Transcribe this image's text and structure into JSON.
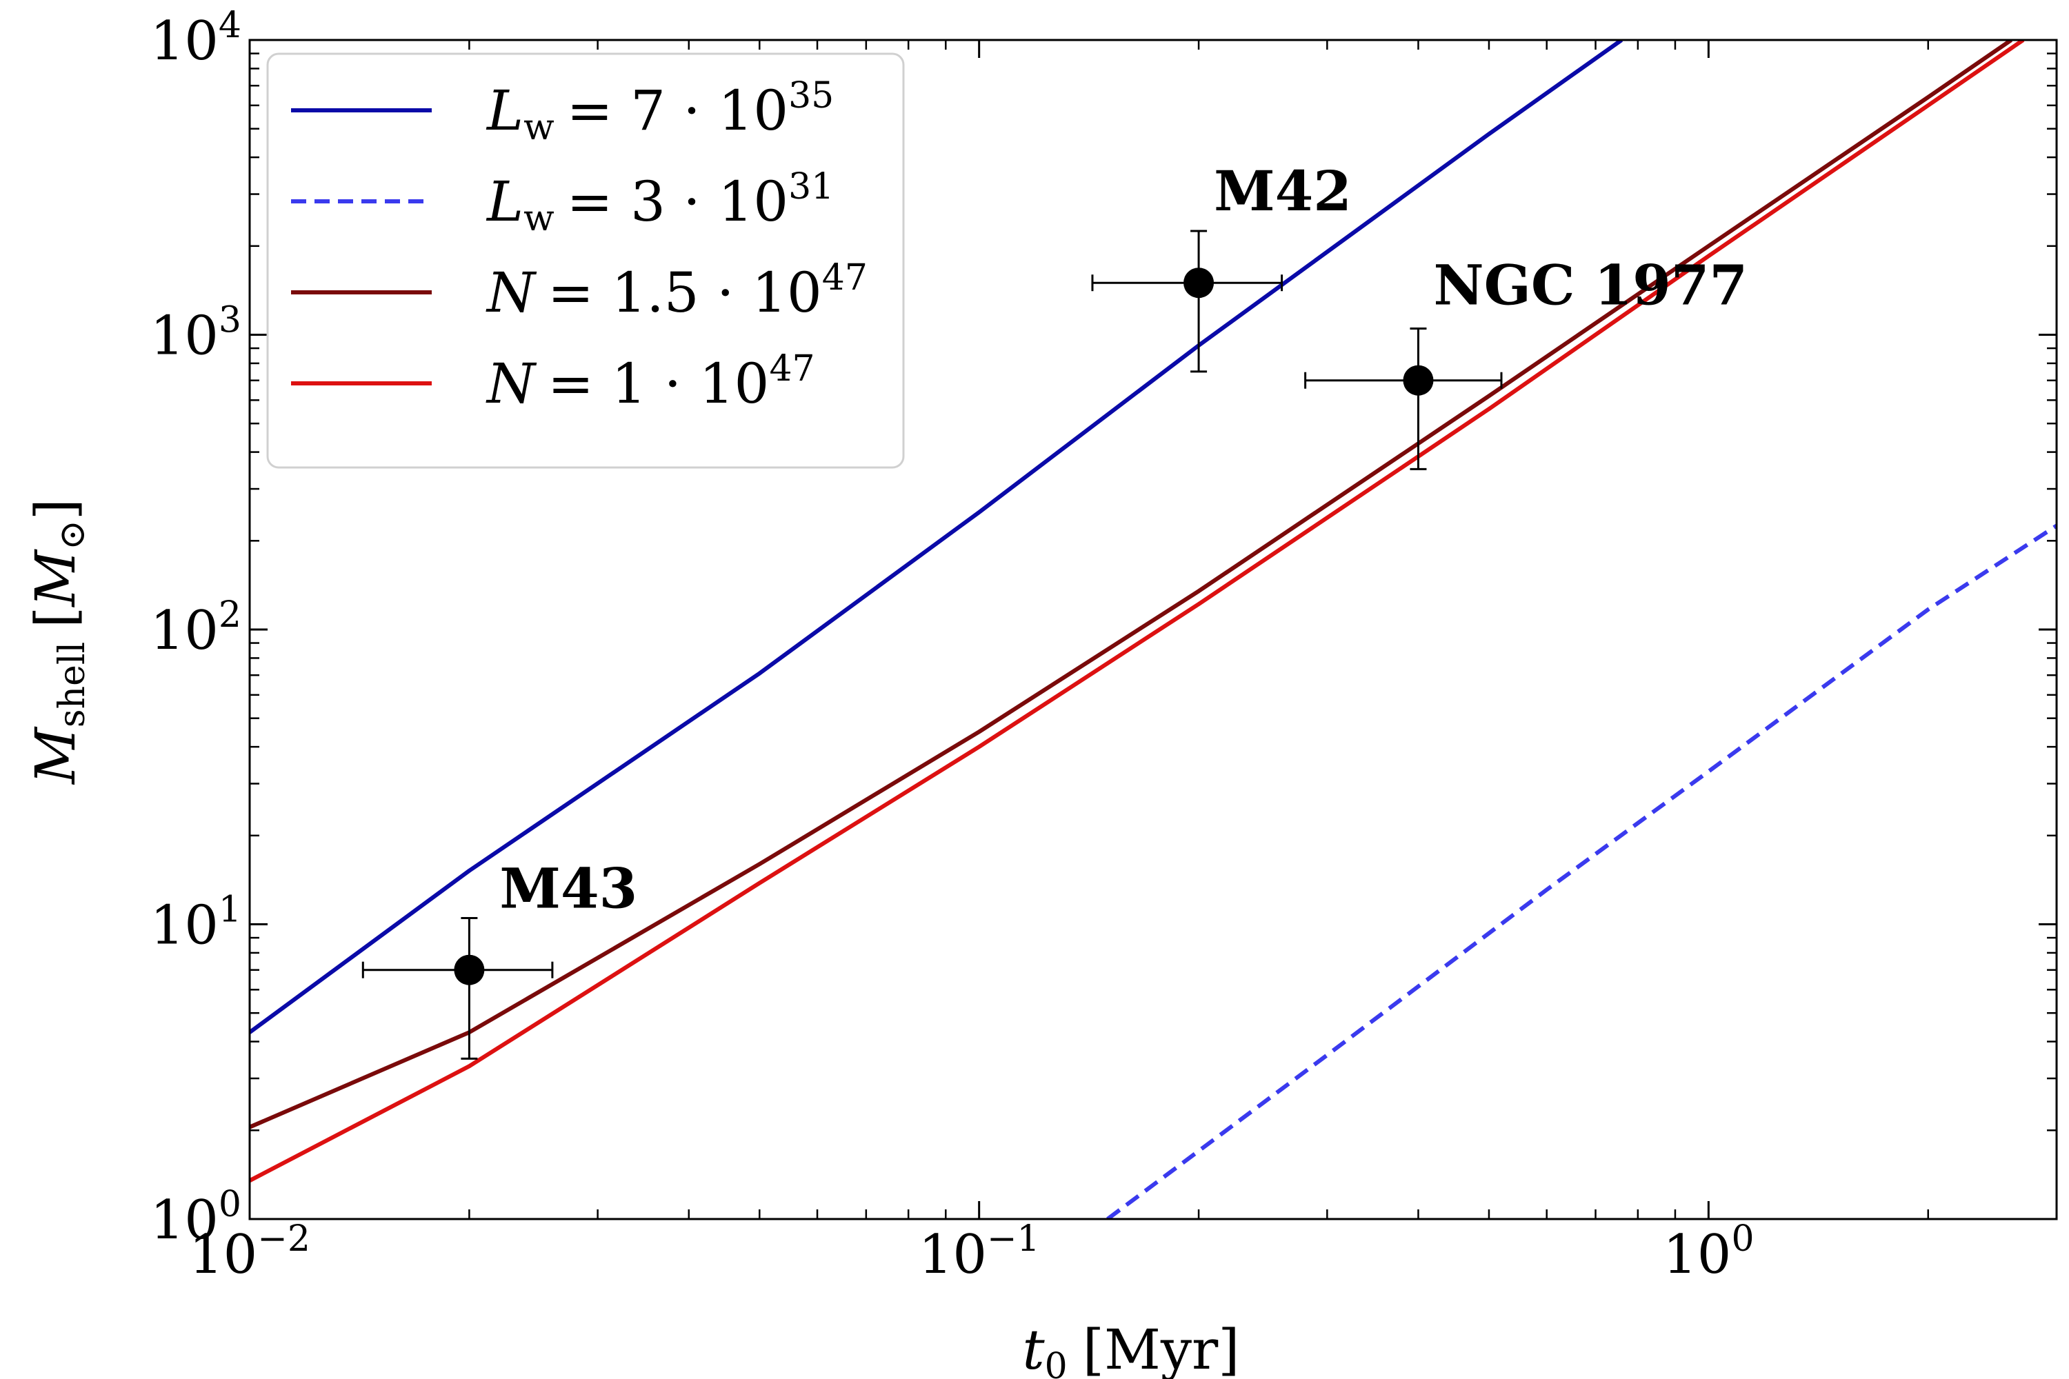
{
  "chart_data": {
    "type": "line",
    "xscale": "log",
    "yscale": "log",
    "xlim": [
      0.01,
      3.0
    ],
    "ylim": [
      1,
      10000
    ],
    "xlabel": {
      "symbol": "t",
      "subscript": "0",
      "unit": "[Myr]"
    },
    "ylabel": {
      "symbol": "M",
      "subscript": "shell",
      "unit": "M",
      "unit_subscript": "⊙"
    },
    "x_ticks": [
      {
        "value": 0.01,
        "base": "10",
        "exp": "−2"
      },
      {
        "value": 0.1,
        "base": "10",
        "exp": "−1"
      },
      {
        "value": 1,
        "base": "10",
        "exp": "0"
      }
    ],
    "y_ticks": [
      {
        "value": 1,
        "base": "10",
        "exp": "0"
      },
      {
        "value": 10,
        "base": "10",
        "exp": "1"
      },
      {
        "value": 100,
        "base": "10",
        "exp": "2"
      },
      {
        "value": 1000,
        "base": "10",
        "exp": "3"
      },
      {
        "value": 10000,
        "base": "10",
        "exp": "4"
      }
    ],
    "series": [
      {
        "name": "L_w = 7·10^35",
        "legend": {
          "sym": "L",
          "sub": "w",
          "rhs": "= 7 · 10",
          "exp": "35"
        },
        "color": "#0a0aa8",
        "dashed": false,
        "x": [
          0.01,
          0.02,
          0.05,
          0.1,
          0.2,
          0.5,
          0.76
        ],
        "y": [
          4.3,
          15.2,
          71,
          250,
          920,
          4800,
          10000
        ]
      },
      {
        "name": "L_w = 3·10^31",
        "legend": {
          "sym": "L",
          "sub": "w",
          "rhs": "= 3 · 10",
          "exp": "31"
        },
        "color": "#3a3aee",
        "dashed": true,
        "x": [
          0.15,
          0.3,
          0.6,
          1.0,
          2.0,
          3.0
        ],
        "y": [
          1.0,
          3.6,
          13.1,
          33,
          117,
          225
        ]
      },
      {
        "name": "N = 1.5·10^47",
        "legend": {
          "sym": "N",
          "sub": "",
          "rhs": "= 1.5 · 10",
          "exp": "47"
        },
        "color": "#7a0a0a",
        "dashed": false,
        "x": [
          0.01,
          0.02,
          0.05,
          0.1,
          0.2,
          0.5,
          1.0,
          2.0,
          2.6
        ],
        "y": [
          2.05,
          4.3,
          16,
          45,
          135,
          620,
          2000,
          6400,
          10000
        ]
      },
      {
        "name": "N = 1·10^47",
        "legend": {
          "sym": "N",
          "sub": "",
          "rhs": "= 1 · 10",
          "exp": "47"
        },
        "color": "#dd1111",
        "dashed": false,
        "x": [
          0.01,
          0.02,
          0.05,
          0.1,
          0.2,
          0.5,
          1.0,
          2.0,
          2.7
        ],
        "y": [
          1.35,
          3.3,
          13.8,
          40,
          122,
          560,
          1850,
          6000,
          10000
        ]
      }
    ],
    "points": [
      {
        "label": "M43",
        "x": 0.02,
        "y": 7,
        "xerr": [
          0.0143,
          0.026
        ],
        "yerr": [
          3.5,
          10.5
        ]
      },
      {
        "label": "M42",
        "x": 0.2,
        "y": 1500,
        "xerr": [
          0.143,
          0.26
        ],
        "yerr": [
          750,
          2250
        ]
      },
      {
        "label": "NGC 1977",
        "x": 0.4,
        "y": 700,
        "xerr": [
          0.28,
          0.52
        ],
        "yerr": [
          350,
          1050
        ]
      }
    ]
  }
}
